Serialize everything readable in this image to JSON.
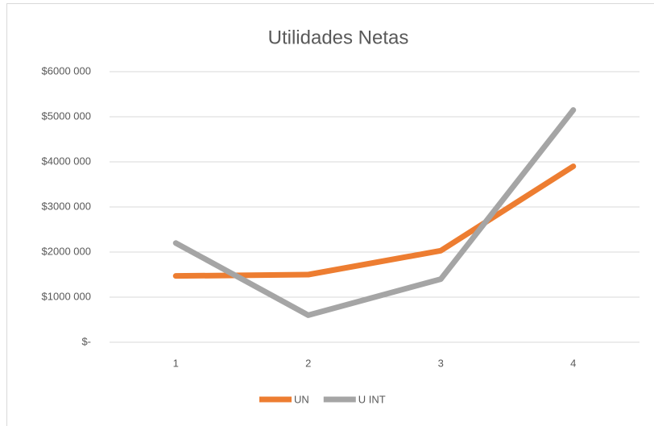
{
  "chart_data": {
    "type": "line",
    "title": "Utilidades Netas",
    "categories": [
      "1",
      "2",
      "3",
      "4"
    ],
    "series": [
      {
        "name": "UN",
        "color": "#ed7d31",
        "values": [
          1470000,
          1500000,
          2030000,
          3900000
        ]
      },
      {
        "name": "U INT",
        "color": "#a5a5a5",
        "values": [
          2200000,
          600000,
          1400000,
          5150000
        ]
      }
    ],
    "ylim": [
      0,
      6000000
    ],
    "yticks": [
      {
        "value": 0,
        "label": "$-"
      },
      {
        "value": 1000000,
        "label": "$1000 000"
      },
      {
        "value": 2000000,
        "label": "$2000 000"
      },
      {
        "value": 3000000,
        "label": "$3000 000"
      },
      {
        "value": 4000000,
        "label": "$4000 000"
      },
      {
        "value": 5000000,
        "label": "$5000 000"
      },
      {
        "value": 6000000,
        "label": "$6000 000"
      }
    ],
    "grid": true,
    "legend": "bottom"
  }
}
